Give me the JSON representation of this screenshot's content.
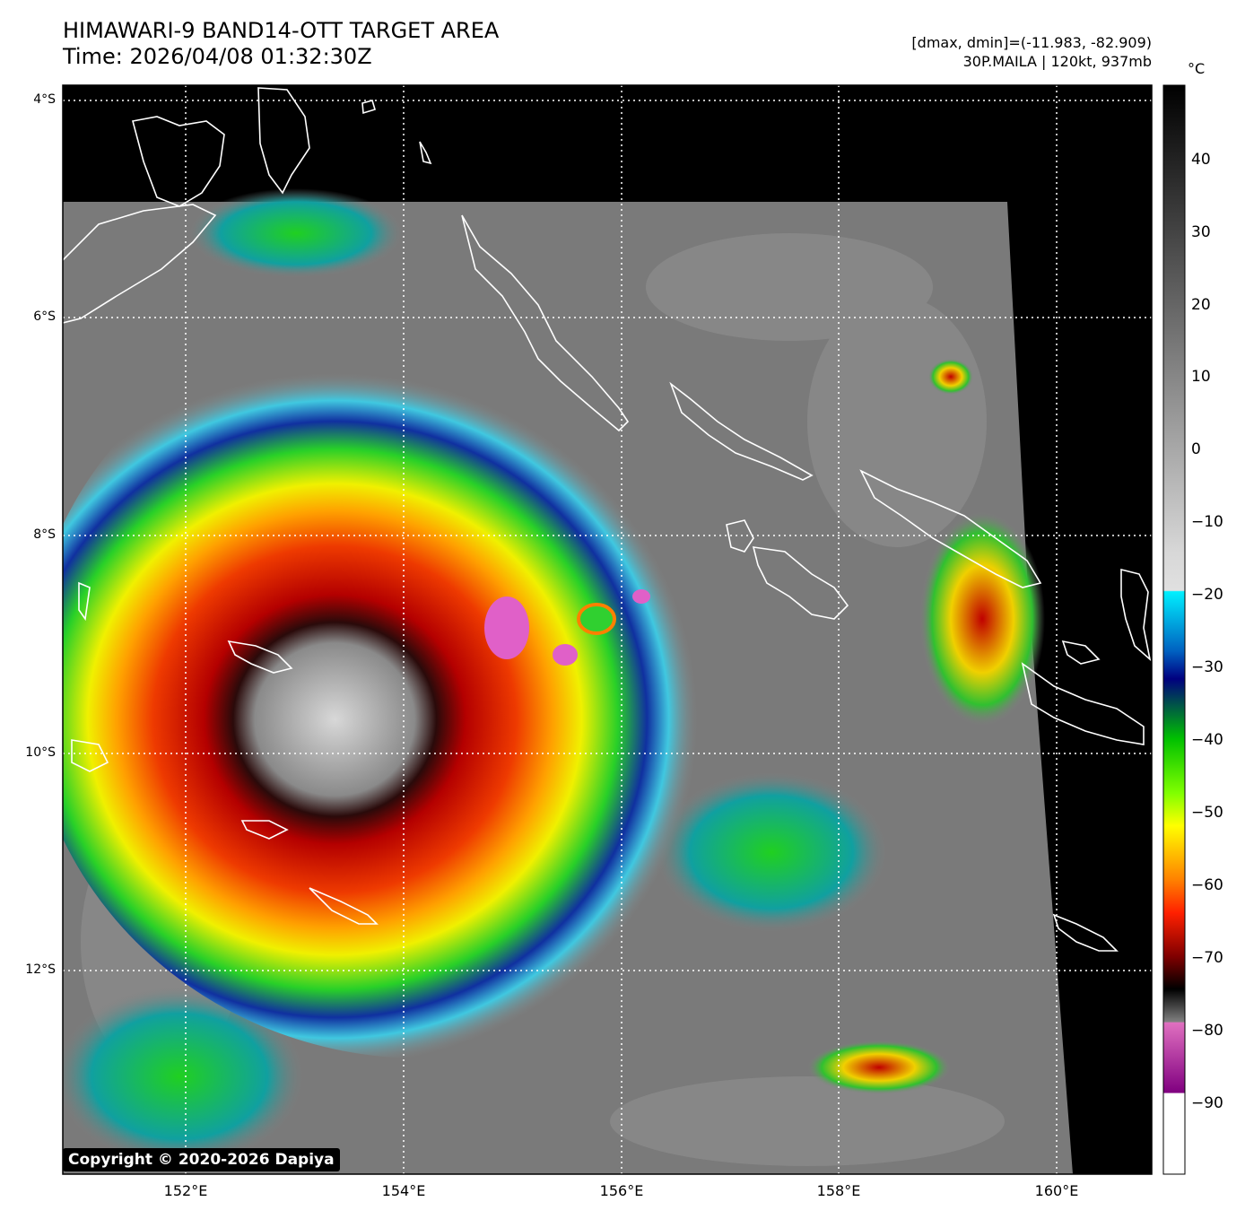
{
  "header": {
    "title_line1": "HIMAWARI-9 BAND14-OTT TARGET AREA",
    "title_line2": "Time: 2026/04/08 01:32:30Z",
    "info_line1": "[dmax, dmin]=(-11.983, -82.909)",
    "info_line2": "30P.MAILA | 120kt, 937mb"
  },
  "map": {
    "lat_labels": [
      "4°S",
      "6°S",
      "8°S",
      "10°S",
      "12°S"
    ],
    "lon_labels": [
      "152°E",
      "154°E",
      "156°E",
      "158°E",
      "160°E"
    ],
    "copyright": "Copyright © 2020-2026 Dapiya"
  },
  "colorbar": {
    "unit": "°C",
    "ticks": [
      "40",
      "30",
      "20",
      "10",
      "0",
      "−10",
      "−20",
      "−30",
      "−40",
      "−50",
      "−60",
      "−70",
      "−80",
      "−90"
    ]
  }
}
